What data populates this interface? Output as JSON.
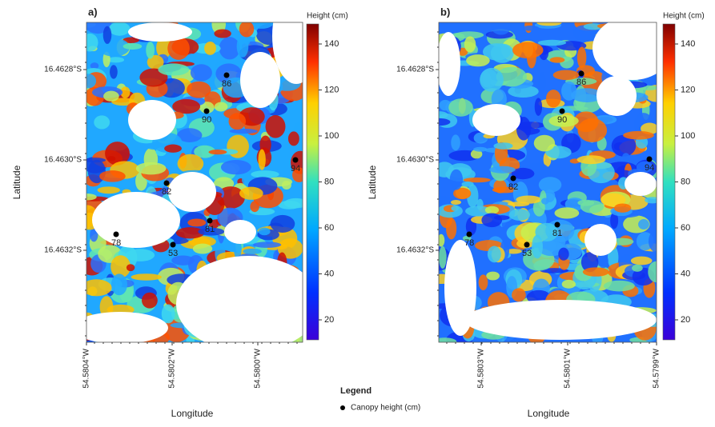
{
  "panels": [
    {
      "label": "a)",
      "colorbar": {
        "title": "Height (cm)",
        "ticks": [
          20,
          40,
          60,
          80,
          100,
          120,
          140
        ]
      },
      "y_axis": {
        "title": "Latitude",
        "ticks": [
          "16.4628°S",
          "16.4630°S",
          "16.4632°S"
        ]
      },
      "x_axis": {
        "title": "Longitude",
        "ticks": [
          "54.5804°W",
          "54.5802°W",
          "54.5800°W"
        ]
      },
      "points": [
        86,
        90,
        94,
        82,
        81,
        78,
        53
      ]
    },
    {
      "label": "b)",
      "colorbar": {
        "title": "Height (cm)",
        "ticks": [
          20,
          40,
          60,
          80,
          100,
          120,
          140
        ]
      },
      "y_axis": {
        "title": "Latitude",
        "ticks": [
          "16.4628°S",
          "16.4630°S",
          "16.4632°S"
        ]
      },
      "x_axis": {
        "title": "Longitude",
        "ticks": [
          "54.5803°W",
          "54.5801°W",
          "54.5799°W"
        ]
      },
      "points": [
        86,
        90,
        94,
        82,
        81,
        78,
        53
      ]
    }
  ],
  "legend": {
    "title": "Legend",
    "items": [
      "Canopy height (cm)"
    ]
  }
}
